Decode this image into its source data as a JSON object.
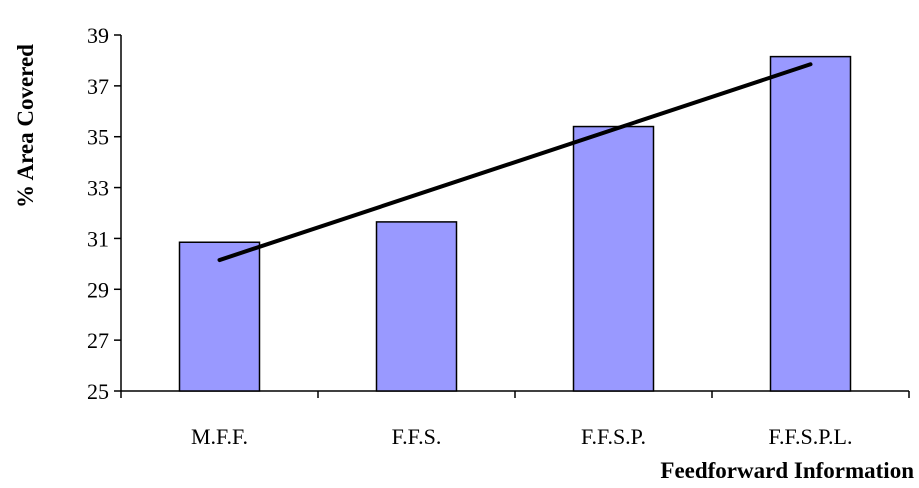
{
  "chart_data": {
    "type": "bar",
    "title": "",
    "xlabel": "Feedforward Information",
    "ylabel": "% Area Covered",
    "categories": [
      "M.F.F.",
      "F.F.S.",
      "F.F.S.P.",
      "F.F.S.P.L."
    ],
    "values": [
      30.85,
      31.65,
      35.4,
      38.15
    ],
    "ylim": [
      25,
      39
    ],
    "yticks": [
      "25",
      "27",
      "29",
      "31",
      "33",
      "35",
      "37",
      "39"
    ],
    "trendline": {
      "type": "linear",
      "start": 30.15,
      "end": 37.85
    },
    "grid": false,
    "legend": "none"
  },
  "colors": {
    "bar_fill": "#9999ff",
    "bar_stroke": "#000000",
    "trendline": "#000000",
    "axis": "#000000"
  }
}
